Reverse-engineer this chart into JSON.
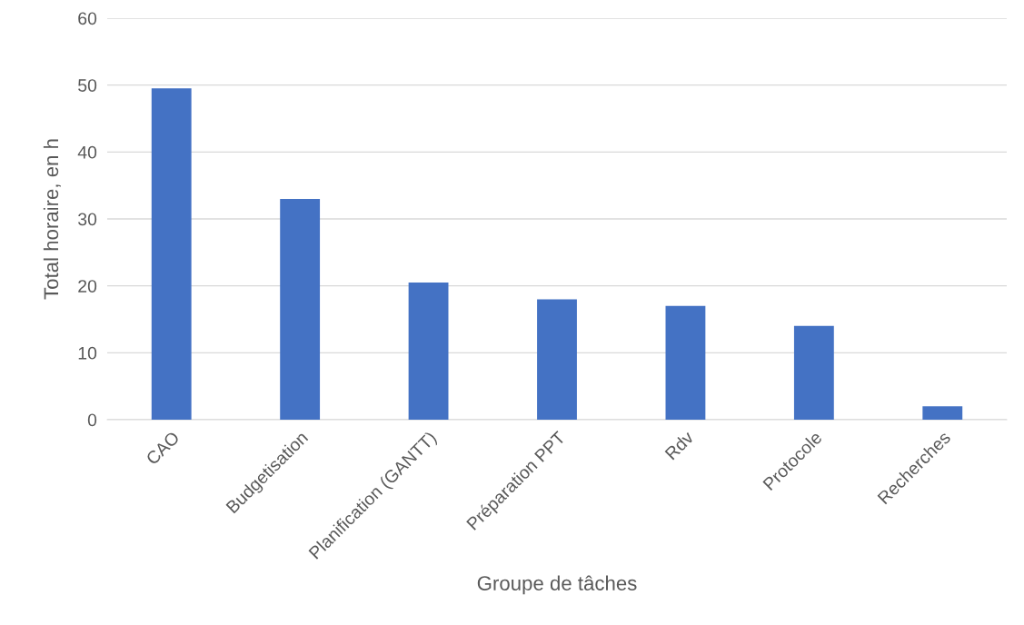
{
  "chart_data": {
    "type": "bar",
    "xlabel": "Groupe de tâches",
    "ylabel": "Total horaire, en h",
    "categories": [
      "CAO",
      "Budgetisation",
      "Planification (GANTT)",
      "Préparation PPT",
      "Rdv",
      "Protocole",
      "Recherches"
    ],
    "values": [
      49.5,
      33,
      20.5,
      18,
      17,
      14,
      2
    ],
    "color": "#4472c4",
    "ylim": [
      0,
      60
    ],
    "yticks": [
      0,
      10,
      20,
      30,
      40,
      50,
      60
    ],
    "grid": "y",
    "legend": false
  }
}
